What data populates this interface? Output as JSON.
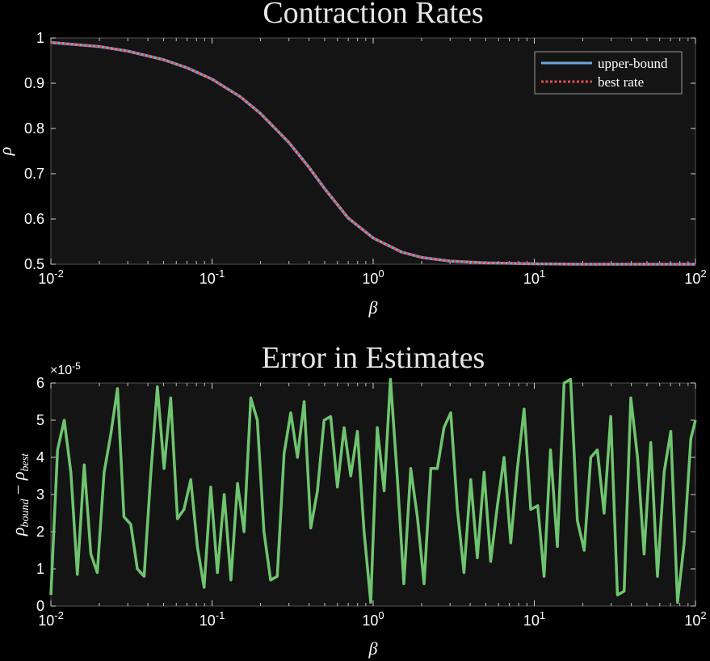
{
  "chart_data": [
    {
      "type": "line",
      "title": "Contraction Rates",
      "xlabel": "β",
      "ylabel": "ρ",
      "xscale": "log",
      "xlim": [
        0.01,
        100
      ],
      "ylim": [
        0.5,
        1
      ],
      "x_ticks": [
        {
          "base": "10",
          "exp": "-2"
        },
        {
          "base": "10",
          "exp": "-1"
        },
        {
          "base": "10",
          "exp": "0"
        },
        {
          "base": "10",
          "exp": "1"
        },
        {
          "base": "10",
          "exp": "2"
        }
      ],
      "y_ticks": [
        "0.5",
        "0.6",
        "0.7",
        "0.8",
        "0.9",
        "1"
      ],
      "legend_position": "top-right",
      "series": [
        {
          "name": "upper-bound",
          "color": "#6fa8dc",
          "style": "solid",
          "x": [
            0.01,
            0.02,
            0.03,
            0.05,
            0.07,
            0.1,
            0.15,
            0.2,
            0.3,
            0.4,
            0.5,
            0.7,
            1,
            1.5,
            2,
            3,
            5,
            7,
            10,
            20,
            50,
            100
          ],
          "values": [
            0.99,
            0.981,
            0.971,
            0.952,
            0.934,
            0.909,
            0.87,
            0.833,
            0.769,
            0.714,
            0.667,
            0.602,
            0.558,
            0.527,
            0.515,
            0.507,
            0.503,
            0.502,
            0.501,
            0.5,
            0.5,
            0.5
          ]
        },
        {
          "name": "best rate",
          "color": "#e84a4a",
          "style": "dotted",
          "x": [
            0.01,
            0.02,
            0.03,
            0.05,
            0.07,
            0.1,
            0.15,
            0.2,
            0.3,
            0.4,
            0.5,
            0.7,
            1,
            1.5,
            2,
            3,
            5,
            7,
            10,
            20,
            50,
            100
          ],
          "values": [
            0.99,
            0.981,
            0.971,
            0.952,
            0.934,
            0.909,
            0.87,
            0.833,
            0.769,
            0.714,
            0.667,
            0.602,
            0.558,
            0.527,
            0.515,
            0.507,
            0.503,
            0.502,
            0.501,
            0.5,
            0.5,
            0.5
          ]
        }
      ]
    },
    {
      "type": "line",
      "title": "Error in Estimates",
      "xlabel": "β",
      "ylabel_parts": {
        "rho1": "ρ",
        "sub1": "bound",
        "minus": " − ",
        "rho2": "ρ",
        "sub2": "best"
      },
      "xscale": "log",
      "xlim": [
        0.01,
        100
      ],
      "ylim": [
        0,
        6
      ],
      "y_multiplier": {
        "base": "×10",
        "exp": "-5"
      },
      "x_ticks": [
        {
          "base": "10",
          "exp": "-2"
        },
        {
          "base": "10",
          "exp": "-1"
        },
        {
          "base": "10",
          "exp": "0"
        },
        {
          "base": "10",
          "exp": "1"
        },
        {
          "base": "10",
          "exp": "2"
        }
      ],
      "y_ticks": [
        "0",
        "1",
        "2",
        "3",
        "4",
        "5",
        "6"
      ],
      "series": [
        {
          "color": "#6fc46f",
          "x": [
            0.01,
            0.011,
            0.0121,
            0.0133,
            0.0146,
            0.0161,
            0.0177,
            0.0194,
            0.0214,
            0.0235,
            0.0259,
            0.0284,
            0.0313,
            0.0344,
            0.0379,
            0.0416,
            0.0458,
            0.0504,
            0.0554,
            0.061,
            0.067,
            0.0738,
            0.0811,
            0.0893,
            0.0982,
            0.108,
            0.119,
            0.131,
            0.144,
            0.158,
            0.174,
            0.191,
            0.21,
            0.231,
            0.254,
            0.28,
            0.308,
            0.339,
            0.373,
            0.41,
            0.451,
            0.496,
            0.545,
            0.6,
            0.66,
            0.726,
            0.798,
            0.878,
            0.966,
            1.06,
            1.17,
            1.28,
            1.41,
            1.55,
            1.71,
            1.88,
            2.07,
            2.28,
            2.5,
            2.75,
            3.03,
            3.33,
            3.66,
            4.03,
            4.43,
            4.88,
            5.36,
            5.9,
            6.49,
            7.14,
            7.85,
            8.64,
            9.5,
            10.5,
            11.5,
            12.6,
            13.9,
            15.3,
            16.8,
            18.5,
            20.4,
            22.4,
            24.6,
            27.1,
            29.8,
            32.8,
            36.1,
            39.7,
            43.7,
            48.0,
            52.8,
            58.1,
            63.9,
            70.3,
            77.4,
            85.1,
            93.6,
            100
          ],
          "values": [
            0.3,
            4.2,
            5.0,
            3.6,
            0.85,
            3.8,
            1.4,
            0.9,
            3.6,
            4.6,
            5.85,
            2.4,
            2.2,
            1.0,
            0.8,
            3.5,
            5.9,
            3.7,
            5.6,
            2.35,
            2.6,
            3.4,
            1.6,
            0.5,
            3.2,
            0.9,
            3.0,
            0.7,
            3.3,
            2.0,
            5.6,
            5.0,
            2.0,
            0.7,
            0.8,
            4.1,
            5.2,
            4.0,
            5.5,
            2.1,
            3.1,
            5.0,
            5.1,
            3.2,
            4.8,
            3.5,
            4.7,
            2.0,
            0.1,
            4.8,
            3.1,
            6.1,
            3.5,
            0.6,
            3.7,
            2.4,
            0.6,
            3.7,
            3.7,
            4.8,
            5.2,
            2.6,
            0.9,
            3.4,
            1.3,
            3.6,
            1.2,
            2.7,
            4.0,
            1.7,
            3.7,
            5.3,
            2.6,
            2.7,
            0.8,
            4.2,
            1.6,
            6.0,
            6.1,
            2.3,
            1.5,
            4.0,
            4.2,
            2.5,
            5.1,
            0.3,
            0.4,
            5.6,
            4.0,
            1.4,
            4.4,
            0.8,
            3.6,
            4.7,
            0.1,
            1.7,
            4.5,
            5.0
          ]
        }
      ]
    }
  ]
}
